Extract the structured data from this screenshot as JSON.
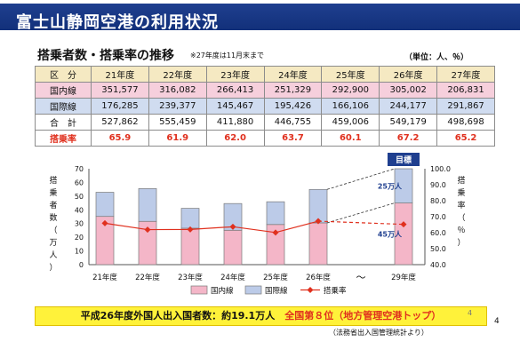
{
  "header": {
    "title": "富士山静岡空港の利用状況"
  },
  "section": {
    "title": "搭乗者数・搭乗率の推移",
    "note": "※27年度は11月末まで",
    "unit": "（単位：人、％）"
  },
  "table": {
    "corner": "区　分",
    "years": [
      "21年度",
      "22年度",
      "23年度",
      "24年度",
      "25年度",
      "26年度",
      "27年度"
    ],
    "rows": [
      {
        "label": "国内線",
        "values": [
          "351,577",
          "316,082",
          "266,413",
          "251,329",
          "292,900",
          "305,002",
          "206,831"
        ]
      },
      {
        "label": "国際線",
        "values": [
          "176,285",
          "239,377",
          "145,467",
          "195,426",
          "166,106",
          "244,177",
          "291,867"
        ]
      },
      {
        "label": "合　計",
        "values": [
          "527,862",
          "555,459",
          "411,880",
          "446,755",
          "459,006",
          "549,179",
          "498,698"
        ]
      },
      {
        "label": "搭乗率",
        "values": [
          "65.9",
          "61.9",
          "62.0",
          "63.7",
          "60.1",
          "67.2",
          "65.2"
        ]
      }
    ]
  },
  "chart_data": {
    "type": "bar",
    "categories": [
      "21年度",
      "22年度",
      "23年度",
      "24年度",
      "25年度",
      "26年度",
      "29年度"
    ],
    "ylabel": "搭乗者数（万人）",
    "y2label": "搭乗率（％）",
    "ylim": [
      0,
      70
    ],
    "y2lim": [
      40,
      100
    ],
    "yticks": [
      "0",
      "10",
      "20",
      "30",
      "40",
      "50",
      "60",
      "70"
    ],
    "y2ticks": [
      "40.0",
      "50.0",
      "60.0",
      "70.0",
      "80.0",
      "90.0",
      "100.0"
    ],
    "series": [
      {
        "name": "国内線",
        "type": "bar",
        "values": [
          35.2,
          31.6,
          26.6,
          25.1,
          29.3,
          30.5,
          45
        ]
      },
      {
        "name": "国際線",
        "type": "bar",
        "values": [
          17.6,
          23.9,
          14.5,
          19.5,
          16.6,
          24.4,
          25
        ]
      },
      {
        "name": "搭乗率",
        "type": "line",
        "values": [
          65.9,
          61.9,
          62.0,
          63.7,
          60.1,
          67.2,
          65.2
        ]
      }
    ],
    "gap_symbol": "〜",
    "target_label": "目標",
    "target_labels": [
      "25万人",
      "45万人"
    ]
  },
  "footer": {
    "text_a": "平成26年度外国人出入国者数：約19.1万人",
    "text_b": "全国第８位（地方管理空港トップ）",
    "small_num": "4",
    "source": "（法務省出入国管理統計より）",
    "page": "4"
  },
  "colors": {
    "domestic": "#f4b6c8",
    "intl": "#bccbe8",
    "rate": "#e0301e",
    "target_bar": "#f4b6c8",
    "outline": "#7a7a7a"
  }
}
